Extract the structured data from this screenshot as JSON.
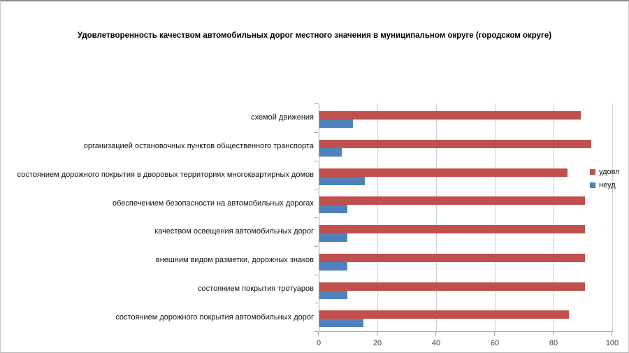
{
  "chart_data": {
    "type": "bar",
    "orientation": "horizontal",
    "title": "Удовлетворенность качеством автомобильных дорог местного значения в муниципальном округе (городском округе)",
    "categories": [
      "схемой движения",
      "организацией остановочных пунктов общественного транспорта",
      "состоянием дорожного покрытия в дворовых территориях многоквартирных домов",
      "обеспечением безопасности на автомобильных дорогах",
      "качеством освещения автомобильных дорог",
      "внешним видом разметки, дорожных знаков",
      "состоянием покрытия тротуаров",
      "состоянием дорожного покрытия автомобильных дорог"
    ],
    "series": [
      {
        "name": "удовл",
        "color": "#C0504D",
        "values": [
          89,
          92.5,
          84.5,
          90.5,
          90.5,
          90.5,
          90.5,
          85
        ]
      },
      {
        "name": "неуд",
        "color": "#4F81BD",
        "values": [
          11.5,
          7.5,
          15.5,
          9.5,
          9.5,
          9.5,
          9.5,
          15
        ]
      }
    ],
    "x_axis": {
      "min": 0,
      "max": 100,
      "ticks": [
        0,
        20,
        40,
        60,
        80,
        100
      ]
    },
    "grid": true,
    "legend_position": "right",
    "colors": {
      "gridline": "#d0d0d0",
      "axis": "#9d9d9d",
      "title_text": "#000000"
    }
  }
}
